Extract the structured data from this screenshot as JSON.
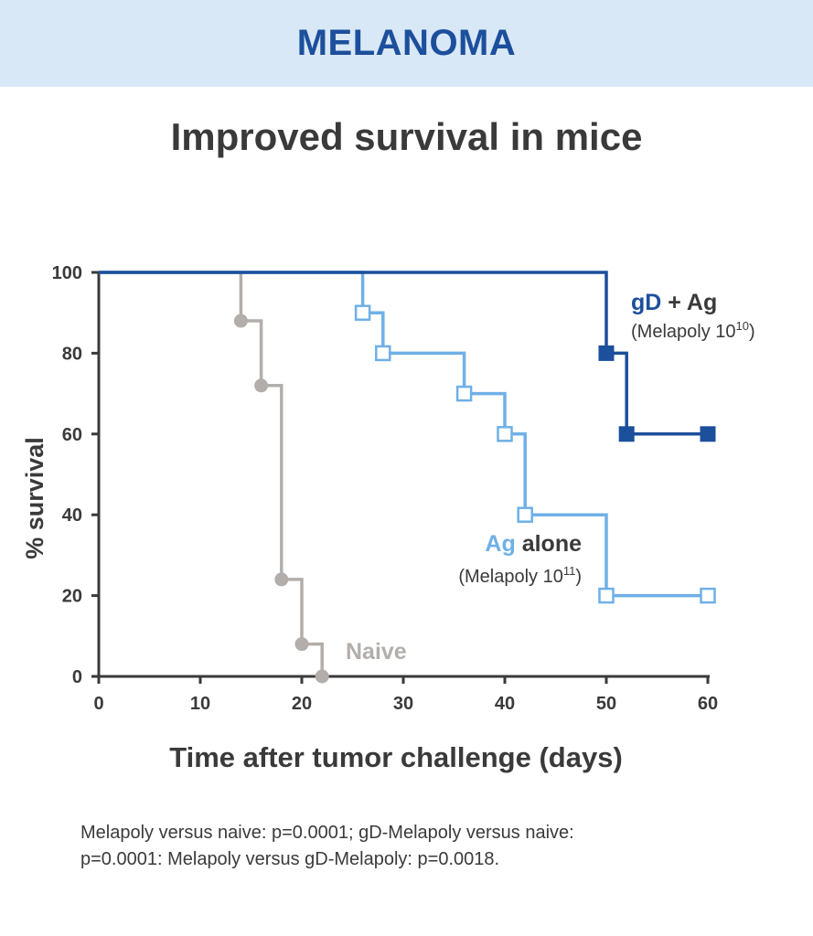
{
  "banner": {
    "title": "MELANOMA"
  },
  "chart_data": {
    "type": "line",
    "title": "Improved survival in mice",
    "xlabel": "Time after tumor challenge (days)",
    "ylabel": "% survival",
    "xlim": [
      0,
      60
    ],
    "ylim": [
      0,
      100
    ],
    "xticks": [
      0,
      10,
      20,
      30,
      40,
      50,
      60
    ],
    "yticks": [
      0,
      20,
      40,
      60,
      80,
      100
    ],
    "grid": false,
    "step": true,
    "series": [
      {
        "name": "Naive",
        "color": "#b3aeab",
        "marker": "filled-circle",
        "x": [
          0,
          14,
          16,
          18,
          20,
          22
        ],
        "y": [
          100,
          88,
          72,
          24,
          8,
          0
        ],
        "marked": [
          false,
          true,
          true,
          true,
          true,
          true
        ]
      },
      {
        "name": "Ag alone",
        "name_prefix": "Ag",
        "name_suffix": " alone",
        "sublabel_base": "(Melapoly 10",
        "sublabel_exp": "11",
        "sublabel_close": ")",
        "color": "#6fb0e6",
        "marker": "open-square",
        "x": [
          0,
          26,
          28,
          36,
          40,
          42,
          50,
          60
        ],
        "y": [
          100,
          90,
          80,
          70,
          60,
          40,
          20,
          20
        ],
        "marked": [
          false,
          true,
          true,
          true,
          true,
          true,
          true,
          true
        ]
      },
      {
        "name": "gD + Ag",
        "name_prefix": "gD",
        "name_suffix": " + Ag",
        "sublabel_base": "(Melapoly 10",
        "sublabel_exp": "10",
        "sublabel_close": ")",
        "color": "#1c4f9c",
        "marker": "filled-square",
        "x": [
          0,
          50,
          52,
          60
        ],
        "y": [
          100,
          80,
          60,
          60
        ],
        "marked": [
          false,
          true,
          true,
          true
        ]
      }
    ]
  },
  "footnote": {
    "line1": "Melapoly versus naive: p=0.0001; gD-Melapoly versus naive:",
    "line2": "p=0.0001: Melapoly versus gD-Melapoly: p=0.0018."
  }
}
